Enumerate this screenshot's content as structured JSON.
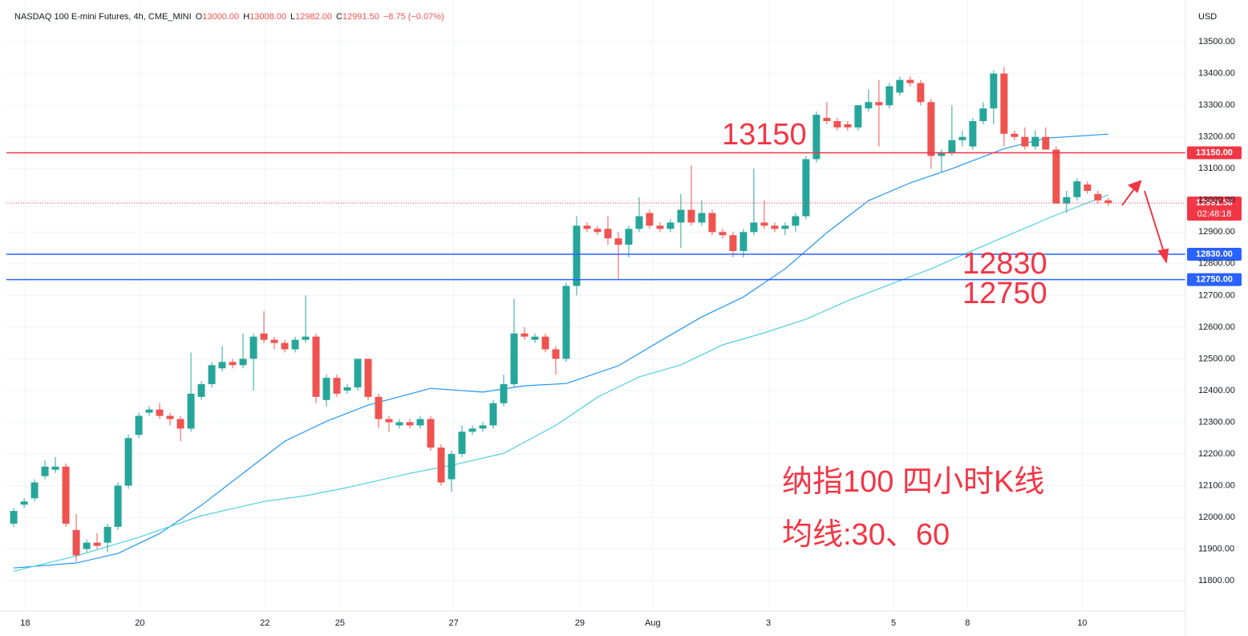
{
  "chart_data": {
    "type": "candlestick",
    "title": "NASDAQ 100 E-mini Futures, 4h, CME_MINI",
    "ohlc_legend": [
      {
        "key": "O",
        "value": "13000.00"
      },
      {
        "key": "H",
        "value": "13008.00"
      },
      {
        "key": "L",
        "value": "12982.00"
      },
      {
        "key": "C",
        "value": "12991.50"
      }
    ],
    "change": "−8.75 (−0.07%)",
    "currency": "USD",
    "up_color": "#26a69a",
    "down_color": "#ef5350",
    "candles": {
      "open": [
        11980,
        12040,
        12060,
        12130,
        12150,
        12160,
        11960,
        11900,
        11920,
        11920,
        11970,
        12100,
        12260,
        12330,
        12340,
        12320,
        12310,
        12280,
        12380,
        12420,
        12470,
        12490,
        12480,
        12500,
        12580,
        12560,
        12550,
        12530,
        12560,
        12570,
        12370,
        12440,
        12400,
        12410,
        12500,
        12380,
        12310,
        12290,
        12300,
        12290,
        12310,
        12220,
        12120,
        12200,
        12270,
        12280,
        12290,
        12360,
        12420,
        12580,
        12560,
        12570,
        12530,
        12500,
        12730,
        12920,
        12910,
        12910,
        12880,
        12860,
        12910,
        12960,
        12920,
        12910,
        12930,
        12970,
        12930,
        12960,
        12900,
        12890,
        12840,
        12900,
        12930,
        12920,
        12910,
        12920,
        12950,
        13130,
        13260,
        13250,
        13240,
        13230,
        13290,
        13310,
        13300,
        13340,
        13380,
        13370,
        13310,
        13140,
        13150,
        13190,
        13170,
        13250,
        13290,
        13400,
        13210,
        13200,
        13170,
        13200,
        13160,
        12990,
        13010,
        13050,
        13020,
        13000
      ],
      "high": [
        12030,
        12060,
        12120,
        12180,
        12190,
        12170,
        12010,
        11930,
        11950,
        11980,
        12110,
        12260,
        12330,
        12350,
        12360,
        12330,
        12320,
        12520,
        12430,
        12490,
        12540,
        12500,
        12580,
        12580,
        12650,
        12570,
        12560,
        12570,
        12700,
        12580,
        12450,
        12450,
        12420,
        12500,
        12500,
        12390,
        12320,
        12310,
        12310,
        12320,
        12320,
        12230,
        12210,
        12290,
        12290,
        12300,
        12370,
        12450,
        12690,
        12600,
        12580,
        12580,
        12540,
        12740,
        12950,
        12930,
        12920,
        12950,
        12900,
        12920,
        13010,
        12970,
        12930,
        12940,
        13020,
        13110,
        13000,
        12970,
        12910,
        12900,
        12910,
        13100,
        13000,
        12930,
        12930,
        12960,
        13140,
        13280,
        13310,
        13260,
        13250,
        13300,
        13350,
        13380,
        13370,
        13390,
        13390,
        13380,
        13320,
        13160,
        13300,
        13220,
        13260,
        13310,
        13410,
        13420,
        13220,
        13230,
        13220,
        13230,
        13170,
        13030,
        13070,
        13060,
        13030,
        13008
      ],
      "low": [
        11970,
        12030,
        12050,
        12120,
        12140,
        11970,
        11860,
        11890,
        11900,
        11890,
        11960,
        12090,
        12250,
        12320,
        12310,
        12290,
        12240,
        12270,
        12370,
        12410,
        12460,
        12470,
        12470,
        12400,
        12550,
        12530,
        12520,
        12520,
        12550,
        12360,
        12350,
        12380,
        12390,
        12400,
        12370,
        12280,
        12270,
        12280,
        12280,
        12280,
        12210,
        12100,
        12080,
        12190,
        12260,
        12270,
        12280,
        12350,
        12410,
        12560,
        12550,
        12520,
        12450,
        12490,
        12700,
        12900,
        12890,
        12860,
        12750,
        12820,
        12900,
        12910,
        12900,
        12900,
        12850,
        12920,
        12920,
        12890,
        12880,
        12820,
        12820,
        12890,
        12910,
        12900,
        12890,
        12900,
        12940,
        13120,
        13240,
        13220,
        13220,
        13220,
        13280,
        13170,
        13290,
        13330,
        13360,
        13300,
        13100,
        13090,
        13140,
        13170,
        13160,
        13240,
        13240,
        13170,
        13190,
        13160,
        13160,
        13160,
        12990,
        12960,
        13000,
        13020,
        12990,
        12982
      ],
      "close": [
        12020,
        12050,
        12110,
        12160,
        12160,
        11980,
        11880,
        11920,
        11910,
        11970,
        12100,
        12250,
        12320,
        12340,
        12320,
        12310,
        12280,
        12390,
        12420,
        12480,
        12490,
        12480,
        12500,
        12570,
        12560,
        12550,
        12530,
        12560,
        12570,
        12380,
        12440,
        12390,
        12410,
        12500,
        12380,
        12310,
        12300,
        12300,
        12290,
        12310,
        12220,
        12110,
        12200,
        12270,
        12280,
        12290,
        12360,
        12420,
        12580,
        12570,
        12570,
        12530,
        12500,
        12730,
        12920,
        12910,
        12900,
        12880,
        12860,
        12910,
        12950,
        12920,
        12910,
        12930,
        12970,
        12930,
        12960,
        12900,
        12890,
        12840,
        12900,
        12930,
        12920,
        12910,
        12920,
        12950,
        13130,
        13270,
        13250,
        13230,
        13230,
        13300,
        13310,
        13300,
        13360,
        13380,
        13370,
        13310,
        13140,
        13150,
        13190,
        13200,
        13250,
        13290,
        13400,
        13210,
        13200,
        13170,
        13200,
        13160,
        12990,
        13010,
        13060,
        13030,
        13000,
        12991.5
      ]
    },
    "moving_averages": [
      {
        "color": "#2196f3",
        "x": [
          0,
          6,
          10,
          14,
          18,
          22,
          26,
          30,
          34,
          40,
          45,
          49,
          53,
          58,
          62,
          66,
          70,
          74,
          78,
          82,
          86,
          90,
          95,
          99,
          105
        ],
        "values": [
          11840,
          11856,
          11886,
          11949,
          12038,
          12139,
          12240,
          12303,
          12354,
          12407,
          12395,
          12415,
          12422,
          12478,
          12556,
          12632,
          12695,
          12784,
          12898,
          12999,
          13055,
          13100,
          13163,
          13196,
          13209
        ]
      },
      {
        "color": "#4dd0e1",
        "x": [
          0,
          6,
          12,
          18,
          24,
          28,
          32,
          38,
          42,
          47,
          52,
          56,
          60,
          64,
          68,
          72,
          76,
          80,
          84,
          88,
          92,
          96,
          100,
          105
        ],
        "values": [
          11830,
          11878,
          11937,
          12005,
          12050,
          12068,
          12094,
          12139,
          12164,
          12202,
          12290,
          12379,
          12443,
          12481,
          12544,
          12582,
          12625,
          12683,
          12734,
          12784,
          12842,
          12898,
          12954,
          13017
        ]
      }
    ],
    "levels": [
      {
        "value": 13150,
        "label": "13150.00",
        "color": "#f23645"
      },
      {
        "value": 12830,
        "label": "12830.00",
        "color": "#2962ff"
      },
      {
        "value": 12750,
        "label": "12750.00",
        "color": "#2962ff"
      }
    ],
    "last_price": {
      "value": 12991.5,
      "label": "12991.50",
      "countdown": "02:48:18",
      "color": "#f23645"
    },
    "annotations": [
      "13150",
      "12830",
      "12750",
      "纳指100 四小时K线",
      "均线:30、60"
    ],
    "annotation_color": "#f23645",
    "xlim": [
      -0.7,
      112.4
    ],
    "ylim": [
      11704,
      13632
    ],
    "xticks": [
      {
        "value": 1.1,
        "label": "18"
      },
      {
        "value": 12.1,
        "label": "20"
      },
      {
        "value": 24.1,
        "label": "22"
      },
      {
        "value": 31.3,
        "label": "25"
      },
      {
        "value": 42.2,
        "label": "27"
      },
      {
        "value": 54.3,
        "label": "29"
      },
      {
        "value": 61.3,
        "label": "Aug"
      },
      {
        "value": 72.4,
        "label": "3"
      },
      {
        "value": 84.4,
        "label": "5"
      },
      {
        "value": 91.5,
        "label": "8"
      },
      {
        "value": 102.5,
        "label": "10"
      }
    ],
    "yticks": [
      {
        "value": 11800,
        "label": "11800.00"
      },
      {
        "value": 11900,
        "label": "11900.00"
      },
      {
        "value": 12000,
        "label": "12000.00"
      },
      {
        "value": 12100,
        "label": "12100.00"
      },
      {
        "value": 12200,
        "label": "12200.00"
      },
      {
        "value": 12300,
        "label": "12300.00"
      },
      {
        "value": 12400,
        "label": "12400.00"
      },
      {
        "value": 12500,
        "label": "12500.00"
      },
      {
        "value": 12600,
        "label": "12600.00"
      },
      {
        "value": 12700,
        "label": "12700.00"
      },
      {
        "value": 12800,
        "label": "12800.00"
      },
      {
        "value": 12900,
        "label": "12900.00"
      },
      {
        "value": 13000,
        "label": "13000.00"
      },
      {
        "value": 13100,
        "label": "13100.00"
      },
      {
        "value": 13200,
        "label": "13200.00"
      },
      {
        "value": 13300,
        "label": "13300.00"
      },
      {
        "value": 13400,
        "label": "13400.00"
      },
      {
        "value": 13500,
        "label": "13500.00"
      }
    ],
    "grid": true
  }
}
